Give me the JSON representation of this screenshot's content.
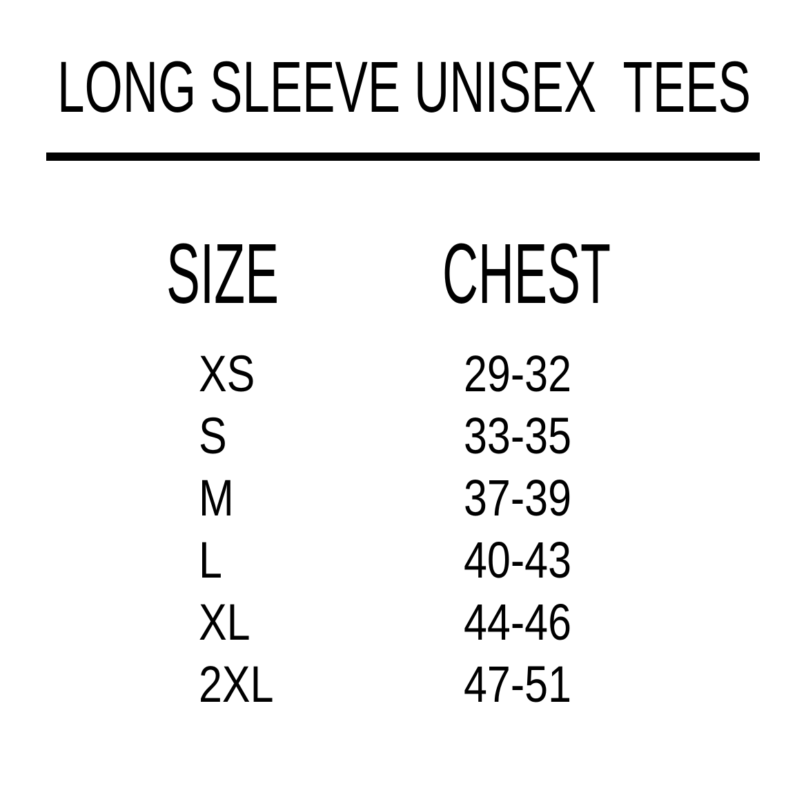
{
  "title": "LONG SLEEVE UNISEX  TEES",
  "table": {
    "headers": {
      "size": "SIZE",
      "chest": "CHEST"
    },
    "rows": [
      {
        "size": "XS",
        "chest": "29-32"
      },
      {
        "size": "S",
        "chest": "33-35"
      },
      {
        "size": "M",
        "chest": "37-39"
      },
      {
        "size": "L",
        "chest": "40-43"
      },
      {
        "size": "XL",
        "chest": "44-46"
      },
      {
        "size": "2XL",
        "chest": "47-51"
      }
    ]
  },
  "colors": {
    "text": "#000000",
    "background": "#ffffff"
  }
}
